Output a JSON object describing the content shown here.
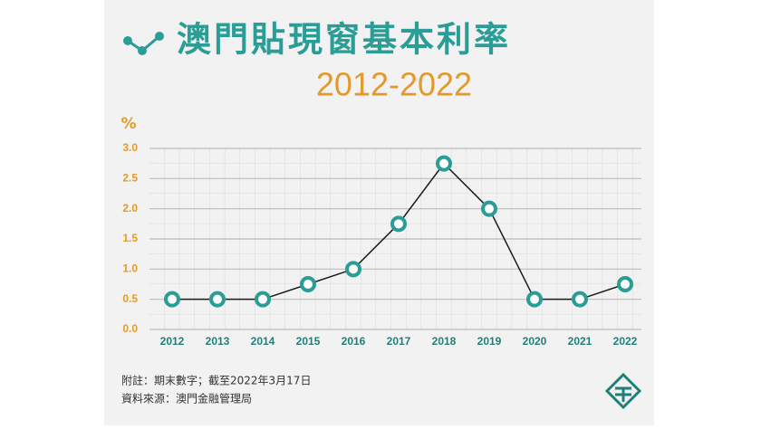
{
  "chart_data": {
    "type": "line",
    "title": "澳門貼現窗基本利率",
    "subtitle": "2012-2022",
    "y_label": "%",
    "categories": [
      "2012",
      "2013",
      "2014",
      "2015",
      "2016",
      "2017",
      "2018",
      "2019",
      "2020",
      "2021",
      "2022"
    ],
    "series": [
      {
        "name": "澳門貼現窗基本利率",
        "color": "#1a1a1a",
        "values": [
          0.5,
          0.5,
          0.5,
          0.75,
          1.0,
          1.75,
          2.75,
          2.0,
          0.5,
          0.5,
          0.75
        ]
      }
    ],
    "marker_color": "#2a9d96",
    "ylim": [
      0,
      3
    ],
    "yticks": [
      {
        "value": 0,
        "label": "0.0"
      },
      0.5,
      {
        "value": 1,
        "label": "1.0"
      },
      1.5,
      {
        "value": 2,
        "label": "2.0"
      },
      2.5,
      {
        "value": 3,
        "label": "3.0"
      }
    ],
    "grid": true,
    "note": "附註：期末數字；截至2022年3月17日",
    "source": "資料來源：澳門金融管理局"
  }
}
